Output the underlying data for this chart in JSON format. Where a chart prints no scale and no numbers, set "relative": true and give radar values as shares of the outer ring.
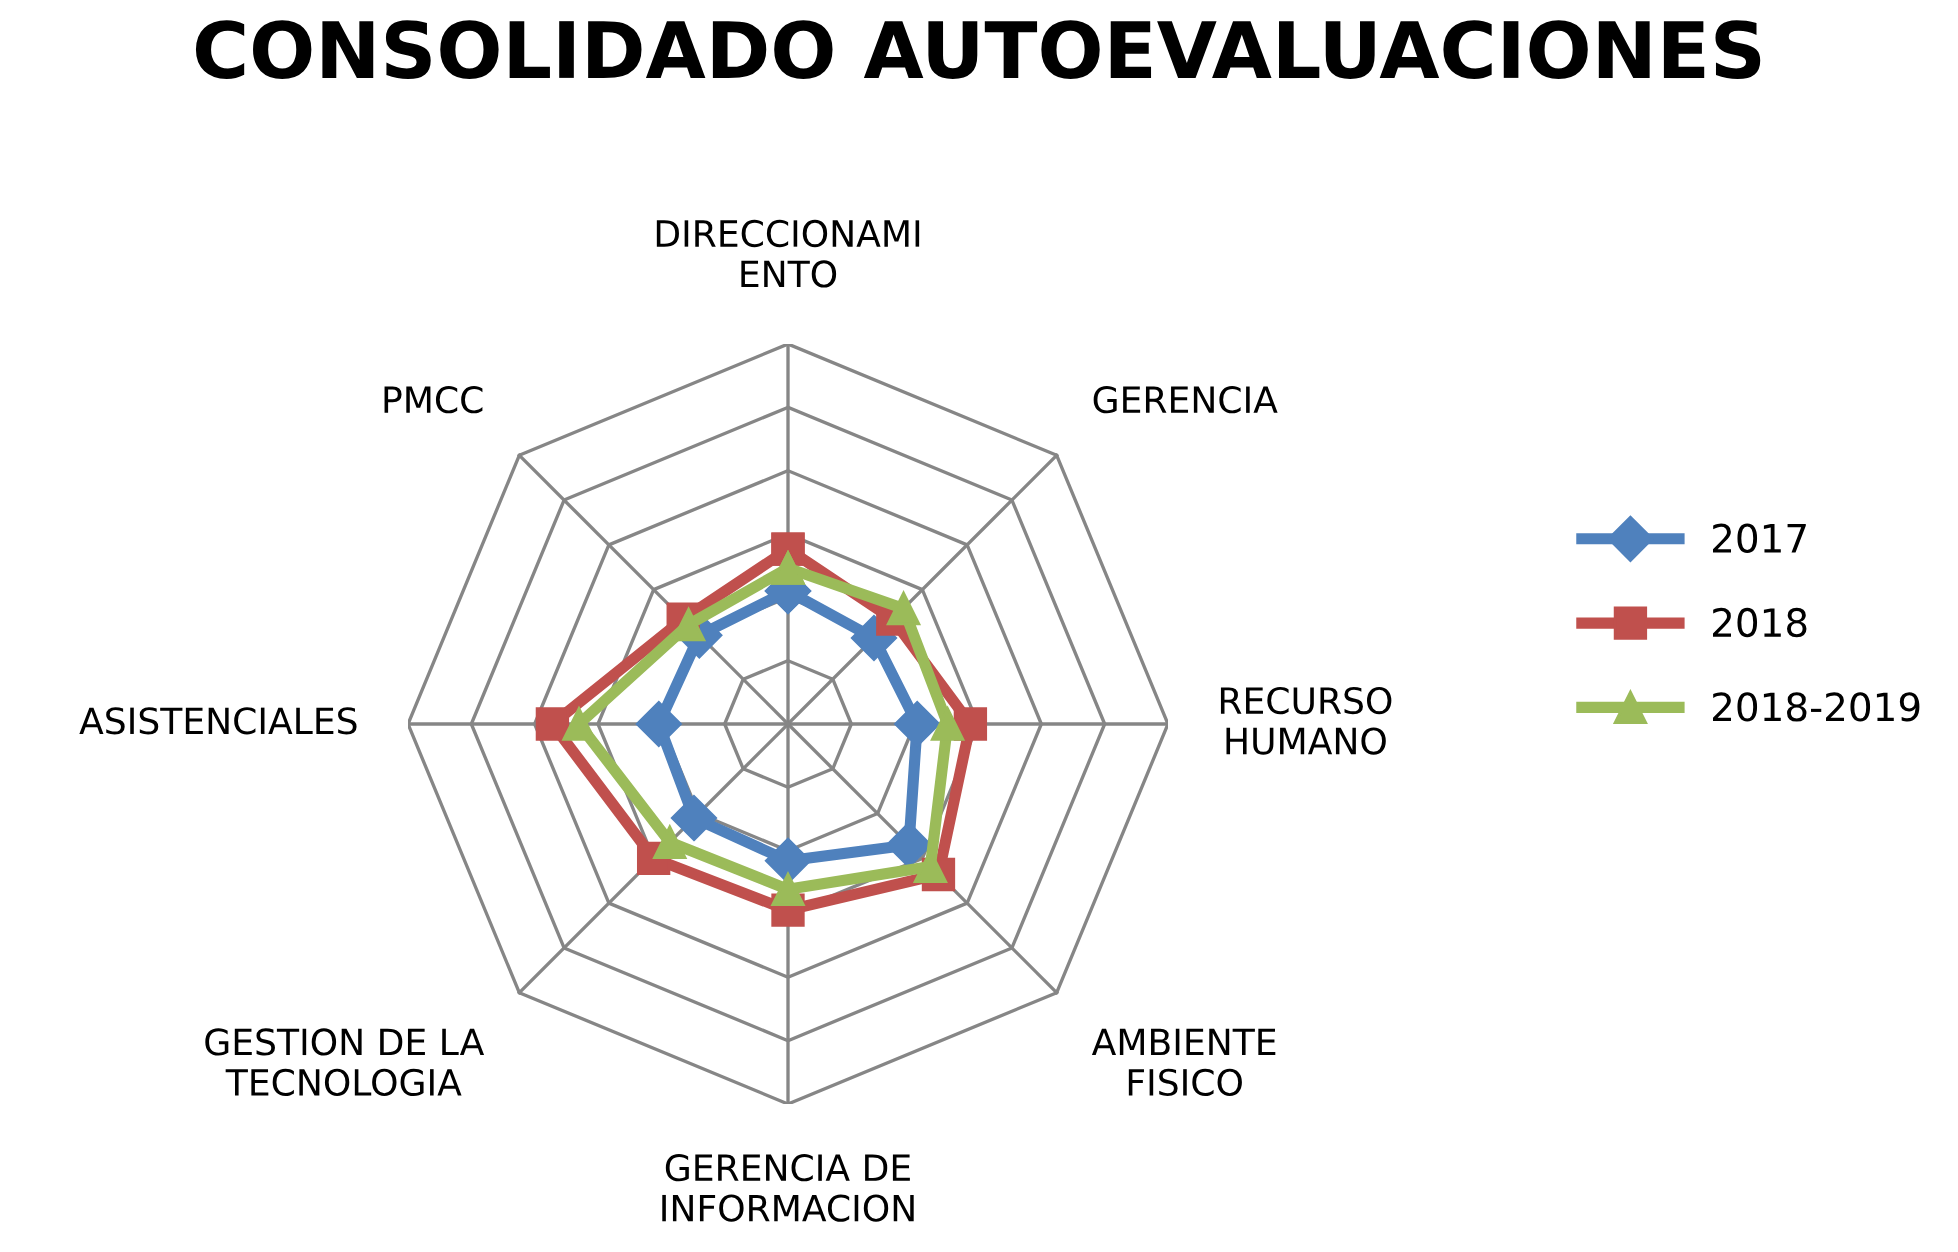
{
  "chart_data": {
    "type": "radar",
    "title": "CONSOLIDADO AUTOEVALUACIONES",
    "relative": true,
    "grid": true,
    "legend": "right",
    "line_style": "solid",
    "categories": [
      "DIRECCIONAMI\nENTO",
      "GERENCIA",
      "RECURSO\nHUMANO",
      "AMBIENTE\nFISICO",
      "GERENCIA DE\nINFORMACION",
      "GESTION DE LA\nTECNOLOGIA",
      "ASISTENCIALES",
      "PMCC"
    ],
    "series": [
      {
        "name": "2017",
        "color": "#4f81bd",
        "marker": "diamond",
        "values": [
          0.35,
          0.32,
          0.34,
          0.45,
          0.36,
          0.35,
          0.34,
          0.33
        ]
      },
      {
        "name": "2018",
        "color": "#c0504d",
        "marker": "square",
        "values": [
          0.46,
          0.39,
          0.48,
          0.56,
          0.49,
          0.5,
          0.62,
          0.39
        ]
      },
      {
        "name": "2018-2019",
        "color": "#9bbb59",
        "marker": "triangle",
        "values": [
          0.41,
          0.43,
          0.42,
          0.53,
          0.435,
          0.44,
          0.55,
          0.37
        ]
      }
    ]
  }
}
